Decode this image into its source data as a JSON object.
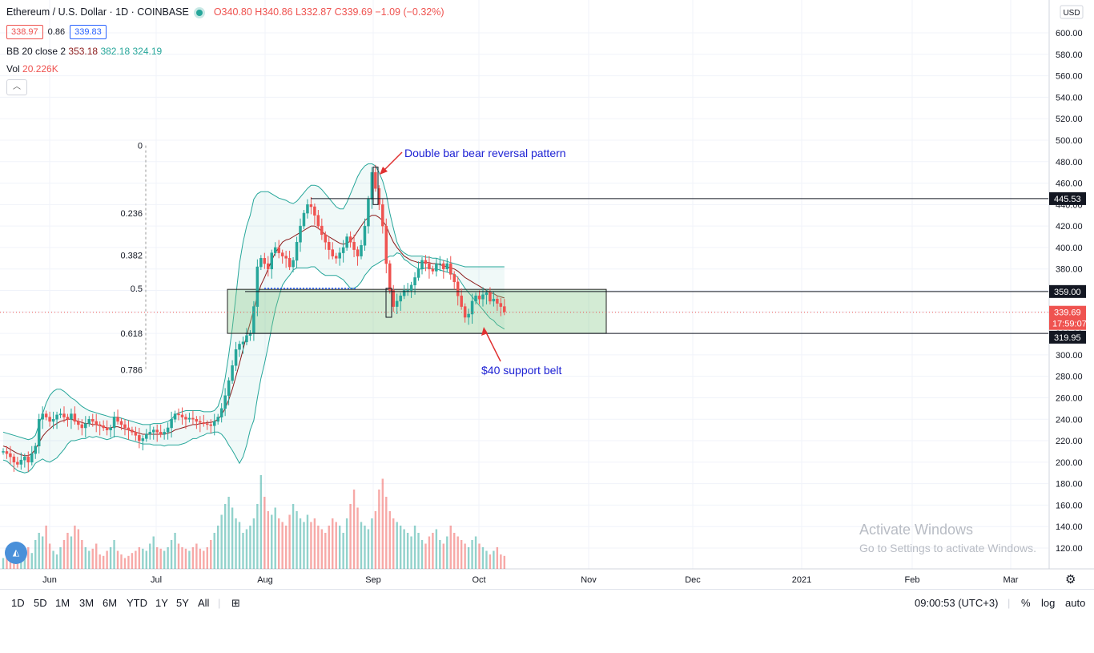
{
  "header": {
    "symbol": "Ethereum / U.S. Dollar · 1D · COINBASE",
    "ohlc": "O340.80 H340.86 L332.87 C339.69 −1.09 (−0.32%)",
    "sell_price": "338.97",
    "spread": "0.86",
    "buy_price": "339.83",
    "bb_label": "BB 20 close 2",
    "bb_mid": "353.18",
    "bb_upper": "382.18",
    "bb_lower": "324.19",
    "vol_label": "Vol",
    "vol_value": "20.226K",
    "currency": "USD"
  },
  "watermark": {
    "line1": "Activate Windows",
    "line2": "Go to Settings to activate Windows."
  },
  "bottom_bar": {
    "ranges": [
      "1D",
      "5D",
      "1M",
      "3M",
      "6M",
      "YTD",
      "1Y",
      "5Y",
      "All"
    ],
    "clock": "09:00:53 (UTC+3)",
    "percent": "%",
    "log": "log",
    "auto": "auto"
  },
  "chart_data": {
    "type": "candlestick",
    "title": "Ethereum / U.S. Dollar · 1D · COINBASE",
    "x_ticks": [
      "Jun",
      "Jul",
      "Aug",
      "Sep",
      "Oct",
      "Nov",
      "Dec",
      "2021",
      "Feb",
      "Mar"
    ],
    "y_ticks": [
      120,
      140,
      160,
      180,
      200,
      220,
      240,
      260,
      280,
      300,
      320,
      340,
      360,
      380,
      400,
      420,
      440,
      460,
      480,
      500,
      520,
      540,
      560,
      580,
      600
    ],
    "ylim": [
      108,
      625
    ],
    "close_series": [
      210,
      208,
      205,
      200,
      198,
      202,
      205,
      200,
      208,
      215,
      240,
      245,
      242,
      238,
      240,
      244,
      245,
      242,
      240,
      245,
      238,
      235,
      232,
      236,
      240,
      238,
      235,
      234,
      232,
      230,
      232,
      242,
      238,
      235,
      232,
      230,
      228,
      225,
      220,
      222,
      226,
      228,
      230,
      228,
      226,
      228,
      232,
      240,
      245,
      244,
      242,
      240,
      241,
      240,
      238,
      237,
      236,
      235,
      234,
      238,
      242,
      250,
      262,
      276,
      290,
      305,
      310,
      312,
      318,
      320,
      345,
      382,
      390,
      385,
      380,
      395,
      400,
      395,
      392,
      390,
      382,
      388,
      405,
      420,
      432,
      440,
      438,
      430,
      420,
      412,
      405,
      398,
      392,
      390,
      395,
      400,
      410,
      405,
      398,
      392,
      402,
      420,
      445,
      470,
      455,
      440,
      420,
      385,
      360,
      345,
      350,
      355,
      360,
      360,
      365,
      372,
      380,
      388,
      385,
      380,
      378,
      385,
      385,
      380,
      385,
      375,
      368,
      355,
      345,
      335,
      338,
      350,
      355,
      352,
      356,
      358,
      350,
      352,
      348,
      345,
      340
    ],
    "bb_middle": [
      215,
      214,
      212,
      210,
      208,
      207,
      206,
      206,
      208,
      212,
      218,
      224,
      228,
      231,
      234,
      236,
      238,
      239,
      240,
      240,
      239,
      238,
      237,
      236,
      236,
      235,
      235,
      234,
      233,
      232,
      232,
      233,
      233,
      232,
      231,
      230,
      229,
      228,
      227,
      226,
      226,
      226,
      226,
      226,
      226,
      226,
      227,
      228,
      230,
      231,
      232,
      233,
      234,
      235,
      235,
      236,
      236,
      237,
      237,
      238,
      240,
      244,
      250,
      258,
      268,
      280,
      292,
      305,
      318,
      330,
      342,
      355,
      365,
      372,
      380,
      388,
      395,
      400,
      405,
      407,
      408,
      410,
      412,
      414,
      416,
      418,
      420,
      420,
      418,
      415,
      412,
      410,
      408,
      406,
      404,
      403,
      404,
      406,
      410,
      415,
      420,
      425,
      428,
      430,
      430,
      428,
      425,
      420,
      412,
      405,
      400,
      396,
      392,
      390,
      388,
      387,
      386,
      386,
      386,
      386,
      385,
      385,
      384,
      383,
      382,
      381,
      380,
      378,
      375,
      372,
      370,
      368,
      366,
      364,
      362,
      360,
      358,
      357,
      355,
      354,
      353
    ],
    "bb_upper": [
      228,
      227,
      226,
      225,
      224,
      223,
      222,
      221,
      222,
      225,
      235,
      245,
      255,
      262,
      266,
      268,
      268,
      266,
      263,
      260,
      258,
      255,
      252,
      250,
      248,
      247,
      246,
      245,
      244,
      243,
      242,
      242,
      242,
      241,
      240,
      239,
      238,
      237,
      236,
      235,
      235,
      235,
      236,
      236,
      236,
      237,
      238,
      240,
      244,
      246,
      247,
      248,
      248,
      248,
      248,
      248,
      247,
      247,
      247,
      248,
      252,
      262,
      278,
      300,
      325,
      355,
      385,
      405,
      420,
      430,
      445,
      450,
      452,
      452,
      452,
      450,
      448,
      446,
      445,
      444,
      442,
      441,
      443,
      447,
      451,
      455,
      458,
      458,
      457,
      454,
      450,
      446,
      442,
      438,
      436,
      436,
      442,
      450,
      458,
      466,
      472,
      476,
      478,
      478,
      476,
      470,
      462,
      450,
      432,
      418,
      405,
      398,
      395,
      393,
      392,
      392,
      392,
      392,
      391,
      391,
      390,
      390,
      389,
      388,
      387,
      386,
      385,
      384,
      383,
      382,
      382,
      382,
      382,
      382,
      382,
      382,
      382,
      382,
      382,
      382,
      382
    ],
    "bb_lower": [
      202,
      201,
      198,
      195,
      192,
      191,
      190,
      191,
      194,
      199,
      201,
      203,
      201,
      200,
      202,
      204,
      208,
      212,
      217,
      220,
      220,
      221,
      222,
      222,
      224,
      223,
      224,
      223,
      222,
      221,
      222,
      224,
      224,
      223,
      222,
      221,
      220,
      219,
      218,
      217,
      217,
      217,
      216,
      216,
      216,
      215,
      216,
      216,
      216,
      216,
      217,
      218,
      220,
      222,
      222,
      224,
      225,
      227,
      227,
      228,
      228,
      226,
      222,
      216,
      211,
      205,
      199,
      205,
      216,
      230,
      239,
      260,
      278,
      292,
      308,
      326,
      342,
      354,
      365,
      370,
      374,
      379,
      381,
      381,
      381,
      381,
      382,
      382,
      379,
      376,
      374,
      374,
      374,
      374,
      372,
      370,
      366,
      362,
      362,
      364,
      368,
      374,
      378,
      382,
      384,
      386,
      388,
      390,
      392,
      392,
      395,
      394,
      389,
      387,
      384,
      382,
      380,
      380,
      381,
      381,
      380,
      380,
      379,
      378,
      377,
      376,
      375,
      372,
      367,
      362,
      358,
      354,
      350,
      346,
      342,
      338,
      334,
      332,
      328,
      326,
      324
    ],
    "volume": [
      115,
      118,
      112,
      120,
      125,
      110,
      118,
      130,
      122,
      140,
      150,
      145,
      160,
      135,
      125,
      120,
      130,
      140,
      150,
      145,
      160,
      155,
      140,
      130,
      125,
      128,
      135,
      120,
      118,
      125,
      130,
      140,
      125,
      120,
      115,
      118,
      122,
      125,
      130,
      128,
      125,
      135,
      145,
      130,
      128,
      125,
      130,
      140,
      150,
      135,
      130,
      128,
      125,
      130,
      135,
      128,
      125,
      130,
      140,
      150,
      160,
      175,
      190,
      200,
      185,
      170,
      165,
      150,
      155,
      160,
      170,
      190,
      230,
      200,
      180,
      175,
      185,
      170,
      165,
      160,
      175,
      190,
      180,
      170,
      165,
      175,
      165,
      170,
      160,
      155,
      150,
      160,
      170,
      165,
      160,
      150,
      170,
      190,
      210,
      185,
      165,
      160,
      155,
      170,
      180,
      210,
      225,
      200,
      180,
      170,
      165,
      160,
      155,
      150,
      145,
      160,
      150,
      140,
      135,
      145,
      150,
      155,
      140,
      135,
      145,
      160,
      150,
      145,
      140,
      135,
      130,
      140,
      145,
      135,
      130,
      125,
      120,
      125,
      130,
      120,
      118
    ],
    "fib_levels": [
      {
        "label": "0",
        "price": 495
      },
      {
        "label": "0.236",
        "price": 432
      },
      {
        "label": "0.382",
        "price": 393
      },
      {
        "label": "0.5",
        "price": 362
      },
      {
        "label": "0.618",
        "price": 320
      },
      {
        "label": "0.786",
        "price": 286
      }
    ],
    "horizontal_lines": [
      {
        "price": 445.53,
        "label": "445.53"
      },
      {
        "price": 359.0,
        "label": "359.00"
      },
      {
        "price": 319.95,
        "label": "319.95"
      }
    ],
    "last_price": {
      "value": "339.69",
      "countdown": "17:59:07"
    },
    "support_zone": {
      "top": 361,
      "bottom": 320
    },
    "annotations": [
      {
        "text": "Double bar bear reversal pattern"
      },
      {
        "text": "$40 support belt"
      }
    ],
    "colors": {
      "up": "#26a69a",
      "down": "#ef5350",
      "bb_band": "#26a69a",
      "bb_basis": "#8b1a1a",
      "zone": "#b7e0b7",
      "annotation": "#1e22d4",
      "arrow": "#e03131"
    }
  }
}
